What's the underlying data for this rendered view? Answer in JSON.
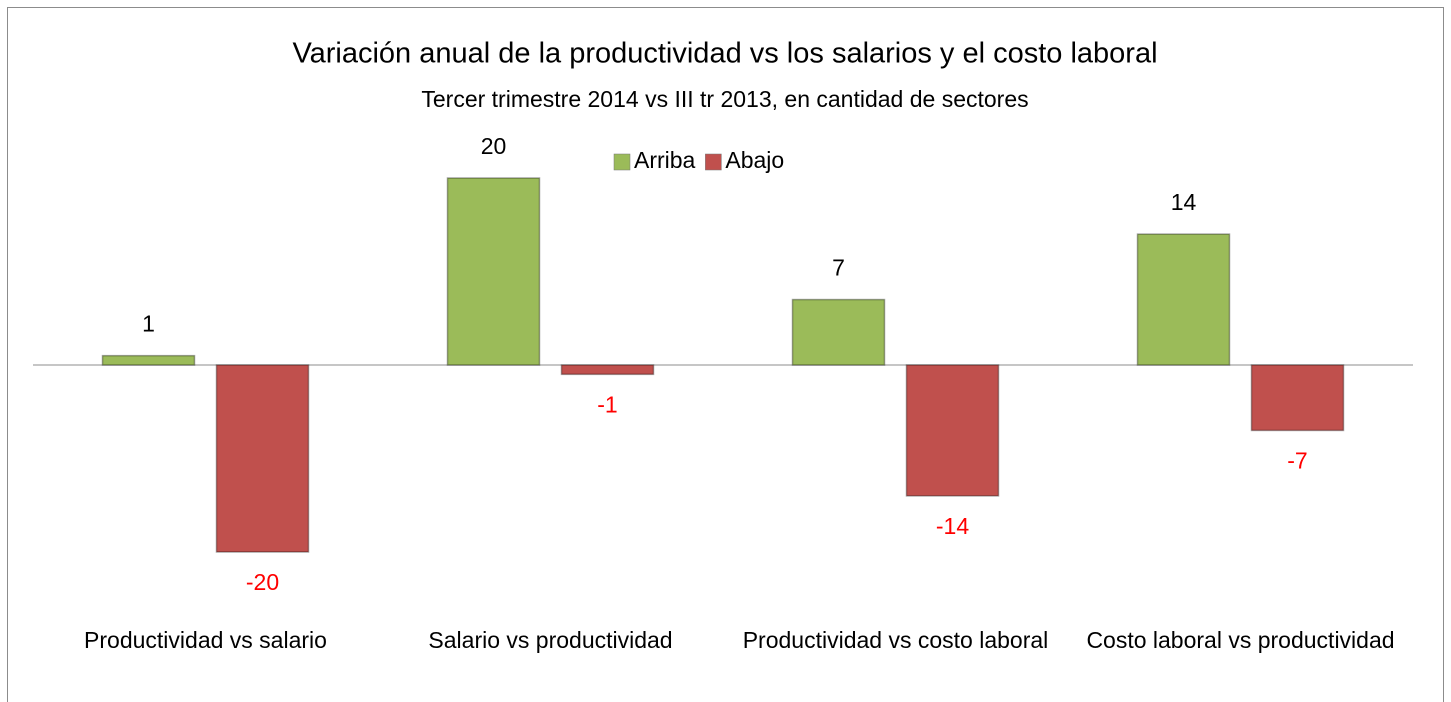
{
  "chart_data": {
    "type": "bar",
    "title": "Variación anual de la productividad vs los salarios y el costo laboral",
    "subtitle": "Tercer trimestre 2014 vs III tr 2013, en cantidad de sectores",
    "categories": [
      "Productividad vs salario",
      "Salario vs productividad",
      "Productividad vs costo laboral",
      "Costo laboral vs productividad"
    ],
    "series": [
      {
        "name": "Arriba",
        "color": "#9bbb59",
        "values": [
          1,
          20,
          7,
          14
        ]
      },
      {
        "name": "Abajo",
        "color": "#c0504d",
        "values": [
          -20,
          -1,
          -14,
          -7
        ]
      }
    ],
    "legend": "top"
  }
}
